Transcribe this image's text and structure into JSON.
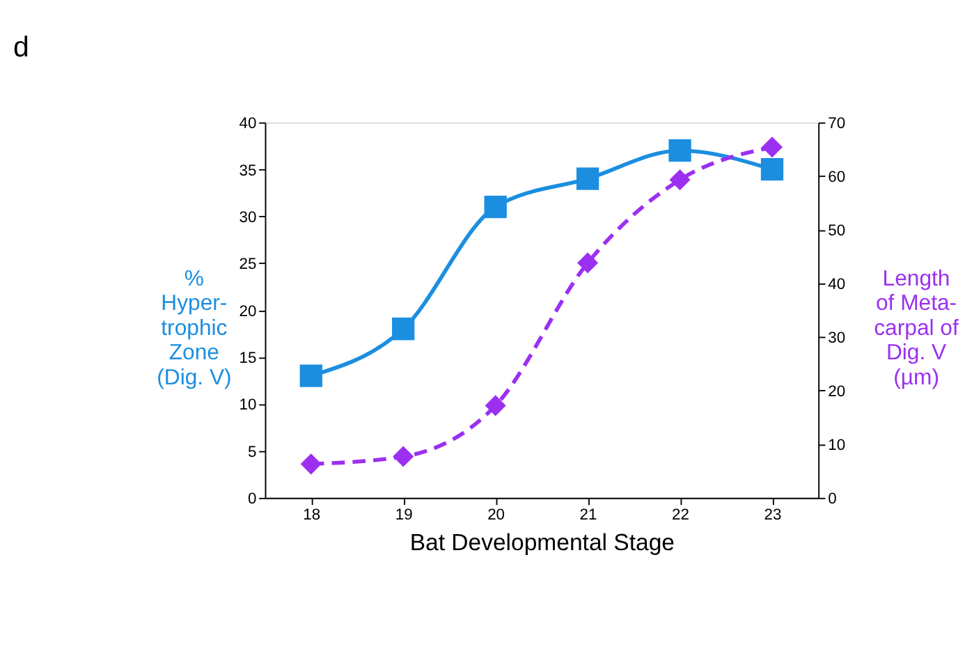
{
  "chart_data": {
    "type": "line",
    "title": "d",
    "xlabel": "Bat Developmental Stage",
    "ylabel": "%\nHyper-\ntrophic\nZone\n(Dig. V)",
    "y2label": "Length\nof Meta-\ncarpal of\nDig. V\n(µm)",
    "x": [
      18,
      19,
      20,
      21,
      22,
      23
    ],
    "xlim": [
      17.5,
      23.5
    ],
    "xticks": [
      18,
      19,
      20,
      21,
      22,
      23
    ],
    "ylim": [
      0,
      40
    ],
    "yticks": [
      0,
      5,
      10,
      15,
      20,
      25,
      30,
      35,
      40
    ],
    "y2lim": [
      0,
      70
    ],
    "y2ticks": [
      0,
      10,
      20,
      30,
      40,
      50,
      60,
      70
    ],
    "grid": false,
    "series": [
      {
        "color": "#1c8ee0",
        "marker": "square",
        "line_style": "solid",
        "values": [
          13,
          18,
          31,
          34,
          37,
          35
        ]
      },
      {
        "color": "#9b30f0",
        "marker": "diamond",
        "line_style": "dashed",
        "axis": "y2",
        "values": [
          6.3,
          7.7,
          17.2,
          43.8,
          59.3,
          65.4
        ]
      }
    ]
  }
}
